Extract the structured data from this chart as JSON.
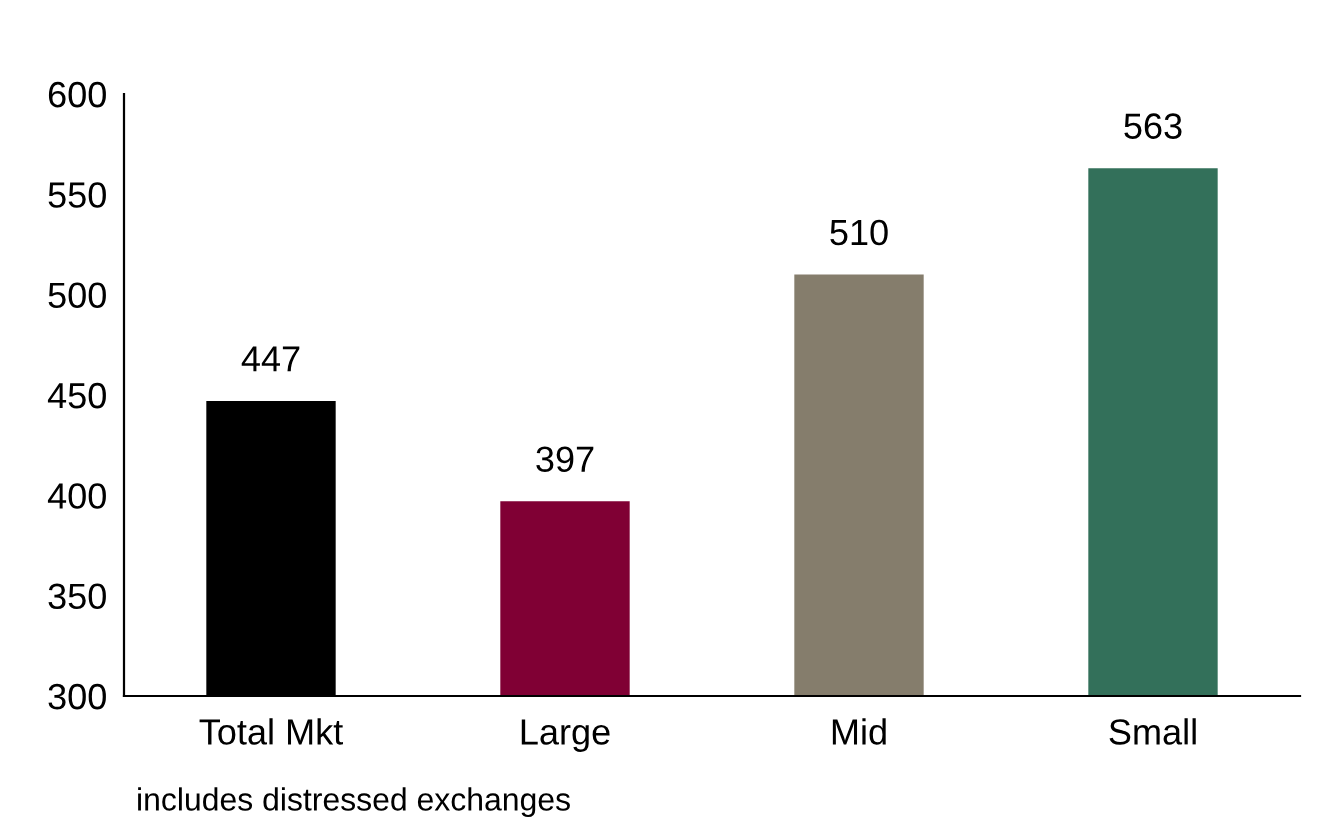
{
  "chart_data": {
    "type": "bar",
    "categories": [
      "Total Mkt",
      "Large",
      "Mid",
      "Small"
    ],
    "values": [
      447,
      397,
      510,
      563
    ],
    "colors": [
      "#000000",
      "#800034",
      "#857d6c",
      "#33705a"
    ],
    "ylim": [
      300,
      600
    ],
    "yticks": [
      300,
      350,
      400,
      450,
      500,
      550,
      600
    ],
    "data_labels": true,
    "grid": false,
    "legend": false,
    "annotations": [
      "includes distressed exchanges"
    ]
  }
}
